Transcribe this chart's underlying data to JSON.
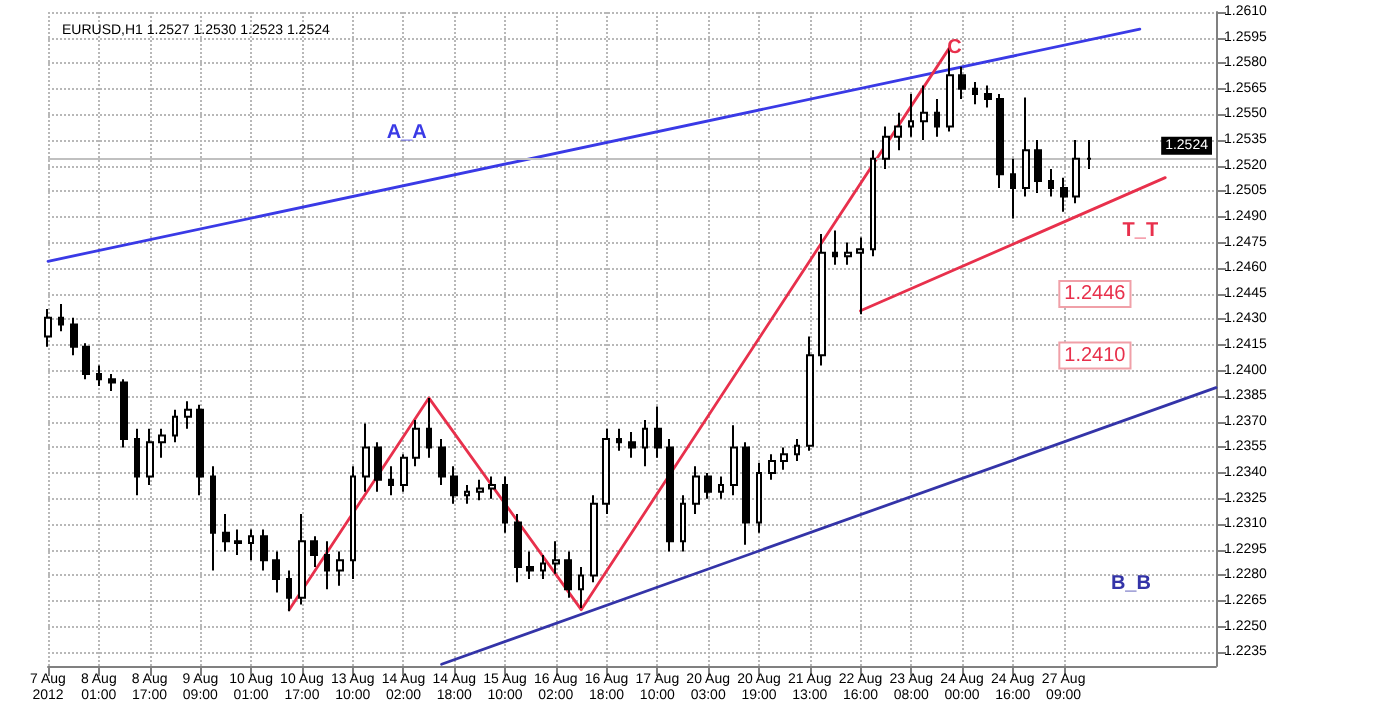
{
  "chart_data": {
    "type": "candlestick",
    "title": "EURUSD,H1 1.2527 1.2530 1.2523 1.2524",
    "categories": [
      "7 Aug 2012",
      null,
      null,
      null,
      "8 Aug 01:00",
      null,
      null,
      null,
      "8 Aug 17:00",
      null,
      null,
      null,
      "9 Aug 09:00",
      null,
      null,
      null,
      "10 Aug 01:00",
      null,
      null,
      null,
      "10 Aug 17:00",
      null,
      null,
      null,
      "13 Aug 10:00",
      null,
      null,
      null,
      "14 Aug 02:00",
      null,
      null,
      null,
      "14 Aug 18:00",
      null,
      null,
      null,
      "15 Aug 10:00",
      null,
      null,
      null,
      "16 Aug 02:00",
      null,
      null,
      null,
      "16 Aug 18:00",
      null,
      null,
      null,
      "17 Aug 10:00",
      null,
      null,
      null,
      "20 Aug 03:00",
      null,
      null,
      null,
      "20 Aug 19:00",
      null,
      null,
      null,
      "21 Aug 13:00",
      null,
      null,
      null,
      "22 Aug 16:00",
      null,
      null,
      null,
      "23 Aug 08:00",
      null,
      null,
      null,
      "24 Aug 00:00",
      null,
      null,
      null,
      "24 Aug 16:00",
      null,
      null,
      null,
      "27 Aug 09:00",
      null,
      null,
      null,
      null,
      null,
      null,
      null,
      null,
      null,
      null,
      null,
      null
    ],
    "series": [
      {
        "type": "candlestick",
        "color": "#000000",
        "ohlc": [
          [
            1.242,
            1.2436,
            1.2414,
            1.2431
          ],
          [
            1.2431,
            1.2439,
            1.2423,
            1.2427
          ],
          [
            1.2427,
            1.2431,
            1.2409,
            1.2414
          ],
          [
            1.2414,
            1.2416,
            1.2395,
            1.2398
          ],
          [
            1.2398,
            1.2403,
            1.2391,
            1.2395
          ],
          [
            1.2395,
            1.2398,
            1.2388,
            1.2393
          ],
          [
            1.2393,
            1.2395,
            1.2355,
            1.236
          ],
          [
            1.236,
            1.2366,
            1.2327,
            1.2338
          ],
          [
            1.2338,
            1.2366,
            1.2333,
            1.2358
          ],
          [
            1.2358,
            1.2366,
            1.2349,
            1.2362
          ],
          [
            1.2362,
            1.2377,
            1.2358,
            1.2373
          ],
          [
            1.2373,
            1.2382,
            1.2366,
            1.2377
          ],
          [
            1.2377,
            1.238,
            1.2327,
            1.2338
          ],
          [
            1.2338,
            1.2344,
            1.2283,
            1.2305
          ],
          [
            1.2305,
            1.2316,
            1.2294,
            1.23
          ],
          [
            1.23,
            1.2307,
            1.2292,
            1.2299
          ],
          [
            1.2299,
            1.2307,
            1.2289,
            1.2303
          ],
          [
            1.2303,
            1.2307,
            1.2283,
            1.2289
          ],
          [
            1.2289,
            1.2294,
            1.227,
            1.2278
          ],
          [
            1.2278,
            1.2283,
            1.2259,
            1.2267
          ],
          [
            1.2267,
            1.2316,
            1.2263,
            1.23
          ],
          [
            1.23,
            1.2303,
            1.2285,
            1.2292
          ],
          [
            1.2292,
            1.23,
            1.2272,
            1.2283
          ],
          [
            1.2283,
            1.2294,
            1.2274,
            1.2289
          ],
          [
            1.2289,
            1.2344,
            1.2278,
            1.2338
          ],
          [
            1.2338,
            1.2369,
            1.2329,
            1.2355
          ],
          [
            1.2355,
            1.2358,
            1.2329,
            1.2336
          ],
          [
            1.2336,
            1.2344,
            1.2327,
            1.2333
          ],
          [
            1.2333,
            1.2351,
            1.2329,
            1.2349
          ],
          [
            1.2349,
            1.2371,
            1.2344,
            1.2366
          ],
          [
            1.2366,
            1.2384,
            1.2349,
            1.2355
          ],
          [
            1.2355,
            1.236,
            1.2333,
            1.2338
          ],
          [
            1.2338,
            1.2344,
            1.2322,
            1.2327
          ],
          [
            1.2327,
            1.2333,
            1.2322,
            1.2329
          ],
          [
            1.2329,
            1.2336,
            1.2324,
            1.2331
          ],
          [
            1.2331,
            1.2338,
            1.2325,
            1.2333
          ],
          [
            1.2333,
            1.2338,
            1.2305,
            1.2311
          ],
          [
            1.2311,
            1.2316,
            1.2276,
            1.2285
          ],
          [
            1.2285,
            1.2294,
            1.2278,
            1.2283
          ],
          [
            1.2283,
            1.2292,
            1.2278,
            1.2287
          ],
          [
            1.2287,
            1.23,
            1.2281,
            1.2289
          ],
          [
            1.2289,
            1.2294,
            1.2267,
            1.2272
          ],
          [
            1.2272,
            1.2285,
            1.2261,
            1.228
          ],
          [
            1.228,
            1.2327,
            1.2276,
            1.2322
          ],
          [
            1.2322,
            1.2366,
            1.2316,
            1.236
          ],
          [
            1.236,
            1.2366,
            1.2353,
            1.2358
          ],
          [
            1.2358,
            1.2364,
            1.2349,
            1.2355
          ],
          [
            1.2355,
            1.2371,
            1.2344,
            1.2366
          ],
          [
            1.2366,
            1.2379,
            1.2349,
            1.2355
          ],
          [
            1.2355,
            1.236,
            1.2294,
            1.23
          ],
          [
            1.23,
            1.2327,
            1.2294,
            1.2322
          ],
          [
            1.2322,
            1.2344,
            1.2316,
            1.2338
          ],
          [
            1.2338,
            1.234,
            1.2325,
            1.2329
          ],
          [
            1.2329,
            1.2338,
            1.2325,
            1.2333
          ],
          [
            1.2333,
            1.2368,
            1.2327,
            1.2355
          ],
          [
            1.2355,
            1.2358,
            1.2298,
            1.2311
          ],
          [
            1.2311,
            1.2346,
            1.2305,
            1.234
          ],
          [
            1.234,
            1.2351,
            1.2336,
            1.2347
          ],
          [
            1.2347,
            1.2355,
            1.2342,
            1.2351
          ],
          [
            1.2351,
            1.236,
            1.2347,
            1.2356
          ],
          [
            1.2356,
            1.242,
            1.2353,
            1.2409
          ],
          [
            1.2409,
            1.248,
            1.2403,
            1.2469
          ],
          [
            1.2469,
            1.2482,
            1.2462,
            1.2467
          ],
          [
            1.2467,
            1.2475,
            1.2462,
            1.2469
          ],
          [
            1.2469,
            1.2478,
            1.2433,
            1.2471
          ],
          [
            1.2471,
            1.2529,
            1.2467,
            1.2524
          ],
          [
            1.2524,
            1.2543,
            1.2518,
            1.2537
          ],
          [
            1.2537,
            1.2551,
            1.2529,
            1.2543
          ],
          [
            1.2543,
            1.2562,
            1.2537,
            1.2546
          ],
          [
            1.2546,
            1.2567,
            1.2535,
            1.2551
          ],
          [
            1.2551,
            1.2559,
            1.2537,
            1.2543
          ],
          [
            1.2543,
            1.2589,
            1.254,
            1.2573
          ],
          [
            1.2573,
            1.2578,
            1.2559,
            1.2565
          ],
          [
            1.2565,
            1.2569,
            1.2556,
            1.2562
          ],
          [
            1.2562,
            1.2567,
            1.2554,
            1.2559
          ],
          [
            1.2559,
            1.2562,
            1.2507,
            1.2515
          ],
          [
            1.2515,
            1.2524,
            1.2489,
            1.2507
          ],
          [
            1.2507,
            1.256,
            1.2502,
            1.2529
          ],
          [
            1.2529,
            1.2535,
            1.2504,
            1.2511
          ],
          [
            1.2511,
            1.2518,
            1.2502,
            1.2507
          ],
          [
            1.2507,
            1.2513,
            1.2493,
            1.2502
          ],
          [
            1.2502,
            1.2535,
            1.2498,
            1.2524
          ],
          [
            1.2524,
            1.2535,
            1.2518,
            1.2524
          ],
          null,
          null,
          null,
          null,
          null,
          null,
          null,
          null,
          null,
          null
        ]
      },
      {
        "type": "line",
        "name": "A_A",
        "color": "#3a3ae6",
        "values": [
          1.2464,
          null,
          null,
          null,
          null,
          null,
          null,
          null,
          null,
          null,
          null,
          null,
          null,
          null,
          null,
          null,
          null,
          null,
          null,
          null,
          null,
          null,
          null,
          null,
          null,
          null,
          null,
          null,
          null,
          null,
          null,
          null,
          null,
          null,
          null,
          null,
          null,
          null,
          null,
          null,
          null,
          null,
          null,
          null,
          null,
          null,
          null,
          null,
          null,
          null,
          null,
          null,
          null,
          null,
          null,
          null,
          null,
          null,
          null,
          null,
          null,
          null,
          null,
          null,
          null,
          null,
          null,
          null,
          null,
          null,
          null,
          null,
          null,
          null,
          null,
          null,
          null,
          null,
          null,
          null,
          null,
          null,
          null,
          null,
          null,
          null,
          1.26,
          null,
          null,
          null,
          null,
          null,
          null
        ]
      },
      {
        "type": "line",
        "name": "B_B",
        "color": "#3434a8",
        "values": [
          null,
          null,
          null,
          null,
          null,
          null,
          null,
          null,
          null,
          null,
          null,
          null,
          null,
          null,
          null,
          null,
          null,
          null,
          null,
          null,
          null,
          null,
          null,
          null,
          null,
          null,
          null,
          null,
          null,
          null,
          null,
          1.2228,
          null,
          null,
          null,
          null,
          null,
          null,
          null,
          null,
          null,
          null,
          null,
          null,
          null,
          null,
          null,
          null,
          null,
          null,
          null,
          null,
          null,
          null,
          null,
          null,
          null,
          null,
          null,
          null,
          null,
          null,
          null,
          null,
          null,
          null,
          null,
          null,
          null,
          null,
          null,
          null,
          null,
          null,
          null,
          null,
          null,
          null,
          null,
          null,
          null,
          null,
          null,
          null,
          null,
          null,
          null,
          null,
          null,
          null,
          null,
          null,
          1.239
        ]
      },
      {
        "type": "line",
        "name": "C",
        "color": "#e8304c",
        "values": [
          null,
          null,
          null,
          null,
          null,
          null,
          null,
          null,
          null,
          null,
          null,
          null,
          null,
          null,
          null,
          null,
          null,
          null,
          null,
          1.226,
          null,
          null,
          null,
          null,
          null,
          null,
          null,
          null,
          null,
          null,
          1.2384,
          null,
          null,
          null,
          null,
          null,
          null,
          null,
          null,
          null,
          null,
          null,
          1.226,
          null,
          null,
          null,
          null,
          null,
          null,
          null,
          null,
          null,
          null,
          null,
          null,
          null,
          null,
          null,
          null,
          null,
          null,
          null,
          null,
          null,
          null,
          null,
          null,
          null,
          null,
          null,
          null,
          1.2589,
          null,
          null,
          null,
          null,
          null,
          null,
          null,
          null,
          null,
          null,
          null,
          null,
          null,
          null,
          null,
          null,
          null,
          null,
          null,
          null,
          null
        ]
      },
      {
        "type": "line",
        "name": "T_T",
        "color": "#e8304c",
        "values": [
          null,
          null,
          null,
          null,
          null,
          null,
          null,
          null,
          null,
          null,
          null,
          null,
          null,
          null,
          null,
          null,
          null,
          null,
          null,
          null,
          null,
          null,
          null,
          null,
          null,
          null,
          null,
          null,
          null,
          null,
          null,
          null,
          null,
          null,
          null,
          null,
          null,
          null,
          null,
          null,
          null,
          null,
          null,
          null,
          null,
          null,
          null,
          null,
          null,
          null,
          null,
          null,
          null,
          null,
          null,
          null,
          null,
          null,
          null,
          null,
          null,
          null,
          null,
          null,
          1.2435,
          null,
          null,
          null,
          null,
          null,
          null,
          null,
          null,
          null,
          null,
          null,
          null,
          null,
          null,
          null,
          null,
          null,
          null,
          null,
          null,
          null,
          null,
          null,
          1.2513,
          null,
          null,
          null,
          null
        ]
      }
    ],
    "ylim": [
      1.2227,
      1.261
    ],
    "yticks": [
      {
        "value": 1.261,
        "label": "1.2610"
      },
      1.2595,
      {
        "value": 1.258,
        "label": "1.2580"
      },
      1.2565,
      {
        "value": 1.255,
        "label": "1.2550"
      },
      1.2535,
      {
        "value": 1.252,
        "label": "1.2520"
      },
      1.2505,
      {
        "value": 1.249,
        "label": "1.2490"
      },
      1.2475,
      {
        "value": 1.246,
        "label": "1.2460"
      },
      1.2445,
      {
        "value": 1.243,
        "label": "1.2430"
      },
      1.2415,
      {
        "value": 1.24,
        "label": "1.2400"
      },
      1.2385,
      {
        "value": 1.237,
        "label": "1.2370"
      },
      1.2355,
      {
        "value": 1.234,
        "label": "1.2340"
      },
      1.2325,
      {
        "value": 1.231,
        "label": "1.2310"
      },
      1.2295,
      {
        "value": 1.228,
        "label": "1.2280"
      },
      1.2265,
      {
        "value": 1.225,
        "label": "1.2250"
      },
      1.2235
    ],
    "ref_lines": [
      {
        "axis": "y",
        "value": 1.2524,
        "label": "1.2524",
        "color": "#c0c0c0"
      }
    ],
    "annotations": [
      {
        "text": "1.2446",
        "y": 1.2446
      },
      {
        "text": "1.2410",
        "y": 1.241
      }
    ],
    "grid": true
  }
}
